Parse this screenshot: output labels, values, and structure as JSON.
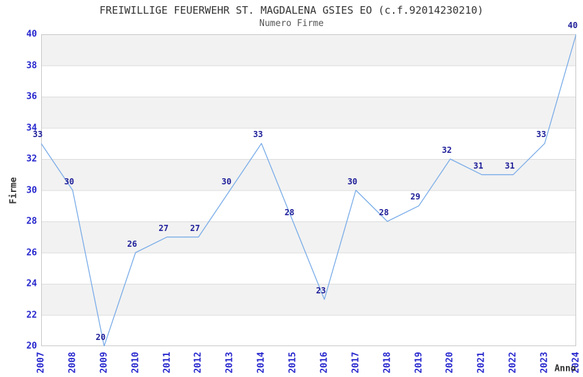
{
  "chart_data": {
    "type": "line",
    "title": "FREIWILLIGE FEUERWEHR ST. MAGDALENA GSIES EO (c.f.92014230210)",
    "subtitle": "Numero Firme",
    "xlabel": "Anno",
    "ylabel": "Firme",
    "x": [
      2007,
      2008,
      2009,
      2010,
      2011,
      2012,
      2013,
      2014,
      2015,
      2016,
      2017,
      2018,
      2019,
      2020,
      2021,
      2022,
      2023,
      2024
    ],
    "values": [
      33,
      30,
      20,
      26,
      27,
      27,
      30,
      33,
      28,
      23,
      30,
      28,
      29,
      32,
      31,
      31,
      33,
      40
    ],
    "ylim": [
      20,
      40
    ],
    "ytick_step": 2,
    "yticks": [
      20,
      22,
      24,
      26,
      28,
      30,
      32,
      34,
      36,
      38,
      40
    ],
    "xtick_rotation": -90,
    "legend_position": "none",
    "markers": false,
    "data_labels_visible": true,
    "grid": "horizontal-bands-alternating",
    "colors": {
      "line": "#79ACE8",
      "tick_labels": "#2727CE",
      "data_labels": "#20209A",
      "band": "#F2F2F2",
      "gridline": "#DCDCDC",
      "plot_border": "#C8C8C8",
      "title": "#333333",
      "subtitle": "#555555",
      "background": "#FFFFFF"
    }
  }
}
